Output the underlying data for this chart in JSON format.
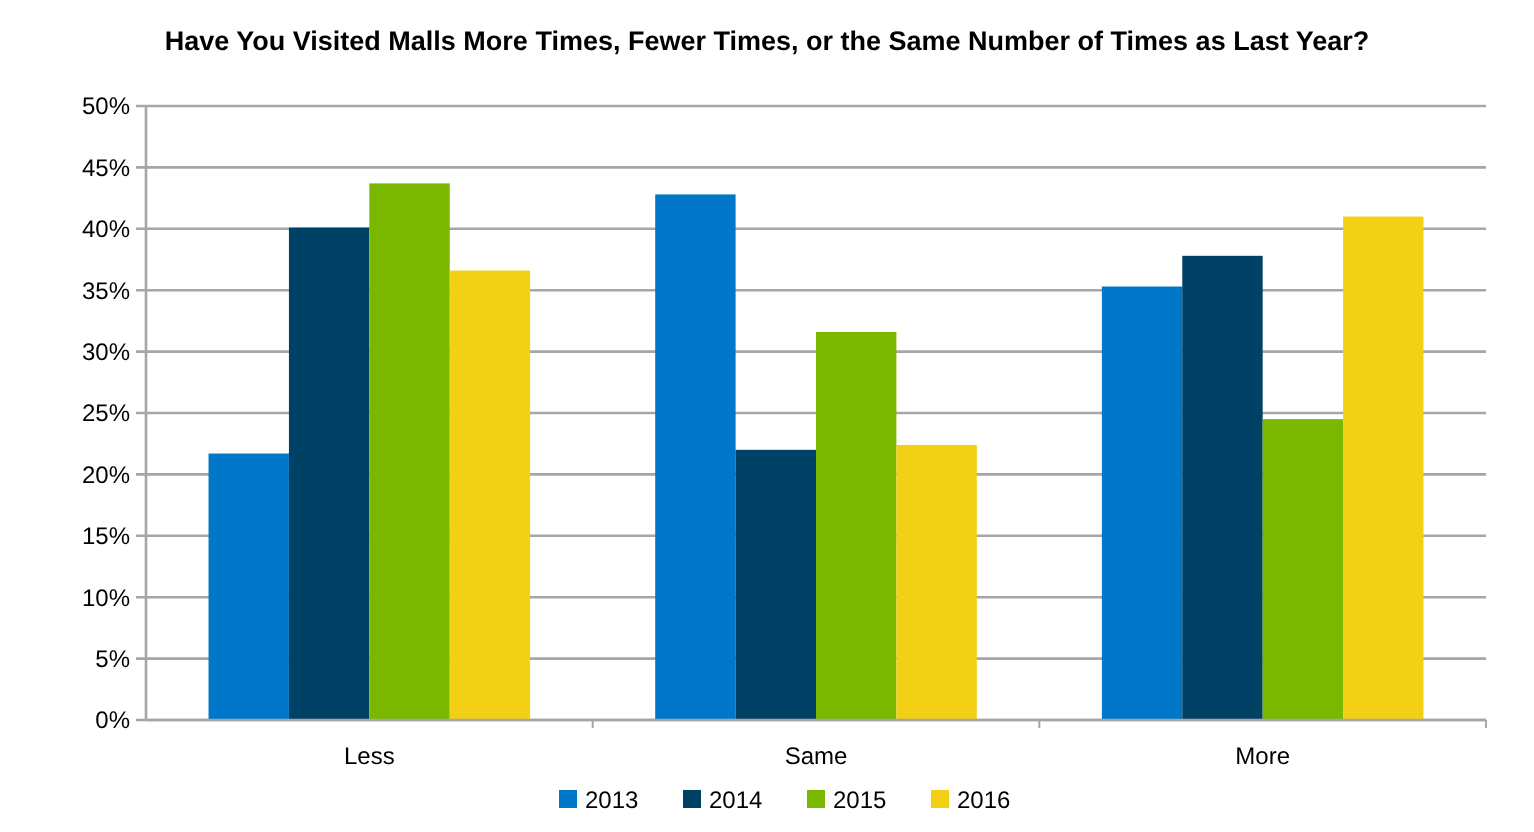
{
  "chart_data": {
    "type": "bar",
    "title": "Have You Visited Malls More Times, Fewer Times, or the Same Number of Times as Last Year?",
    "categories": [
      "Less",
      "Same",
      "More"
    ],
    "series": [
      {
        "name": "2013",
        "color": "#0077c8",
        "values": [
          21.7,
          42.8,
          35.3
        ]
      },
      {
        "name": "2014",
        "color": "#004166",
        "values": [
          40.1,
          22.0,
          37.8
        ]
      },
      {
        "name": "2015",
        "color": "#7ab800",
        "values": [
          43.7,
          31.6,
          24.5
        ]
      },
      {
        "name": "2016",
        "color": "#f2d013",
        "values": [
          36.6,
          22.4,
          41.0
        ]
      }
    ],
    "ylim": [
      0,
      50
    ],
    "yticks": [
      {
        "value": 0,
        "label": "0%"
      },
      {
        "value": 5,
        "label": "5%"
      },
      {
        "value": 10,
        "label": "10%"
      },
      {
        "value": 15,
        "label": "15%"
      },
      {
        "value": 20,
        "label": "20%"
      },
      {
        "value": 25,
        "label": "25%"
      },
      {
        "value": 30,
        "label": "30%"
      },
      {
        "value": 35,
        "label": "35%"
      },
      {
        "value": 40,
        "label": "40%"
      },
      {
        "value": 45,
        "label": "45%"
      },
      {
        "value": 50,
        "label": "50%"
      }
    ],
    "grid": "y",
    "legend": "bottom"
  }
}
